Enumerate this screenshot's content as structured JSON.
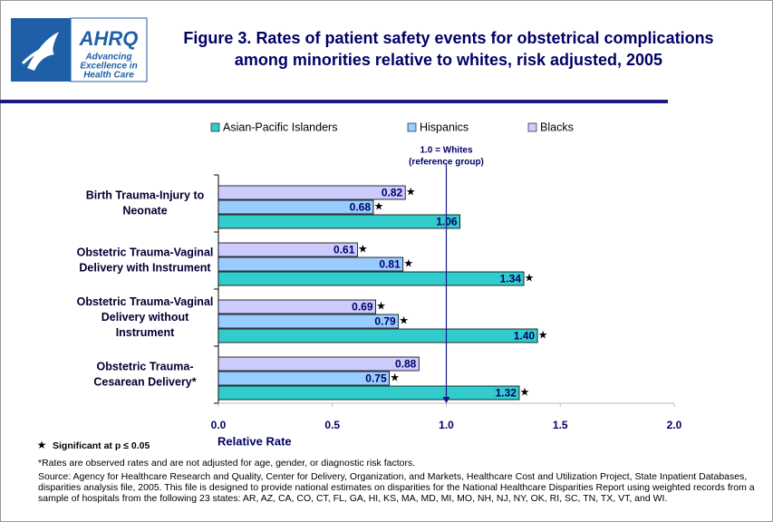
{
  "logo": {
    "acronym": "AHRQ",
    "tagline": [
      "Advancing",
      "Excellence in",
      "Health Care"
    ]
  },
  "chart_data": {
    "type": "hbar",
    "title": [
      "Figure 3. Rates of patient safety events for obstetrical complications",
      "among minorities relative to whites, risk adjusted, 2005"
    ],
    "categories": [
      [
        "Birth Trauma-Injury to",
        "Neonate"
      ],
      [
        "Obstetric Trauma-Vaginal",
        "Delivery with Instrument"
      ],
      [
        "Obstetric Trauma-Vaginal",
        "Delivery without",
        "Instrument"
      ],
      [
        "Obstetric Trauma-",
        "Cesarean Delivery*"
      ]
    ],
    "series": [
      {
        "name": "Asian-Pacific Islanders",
        "color": "#33cccc",
        "values": [
          1.06,
          1.34,
          1.4,
          1.32
        ],
        "value_labels": [
          "1.06",
          "1.34",
          "1.40",
          "1.32"
        ],
        "significant": [
          false,
          true,
          true,
          true
        ]
      },
      {
        "name": "Hispanics",
        "color": "#99ccff",
        "values": [
          0.68,
          0.81,
          0.79,
          0.75
        ],
        "value_labels": [
          "0.68",
          "0.81",
          "0.79",
          "0.75"
        ],
        "significant": [
          true,
          true,
          true,
          true
        ]
      },
      {
        "name": "Blacks",
        "color": "#ccccff",
        "values": [
          0.82,
          0.61,
          0.69,
          0.88
        ],
        "value_labels": [
          "0.82",
          "0.61",
          "0.69",
          "0.88"
        ],
        "significant": [
          true,
          true,
          true,
          false
        ]
      }
    ],
    "xlim": [
      0,
      2
    ],
    "xticks": [
      {
        "value": 0,
        "label": "0.0"
      },
      {
        "value": 0.5,
        "label": "0.5"
      },
      {
        "value": 1,
        "label": "1.0"
      },
      {
        "value": 1.5,
        "label": "1.5"
      },
      {
        "value": 2,
        "label": "2.0"
      }
    ],
    "xlabel": "Relative Rate",
    "reference_line": {
      "value": 1,
      "label": [
        "1.0 = Whites",
        "(reference group)"
      ]
    },
    "significance_marker": "★",
    "significance_note": "Significant at p ≤ 0.05",
    "footnote": "*Rates are observed rates and are not adjusted for age, gender, or diagnostic risk factors.",
    "source": "Source: Agency for Healthcare Research and Quality, Center for Delivery, Organization, and Markets, Healthcare Cost and Utilization Project, State Inpatient Databases, disparities analysis file, 2005. This file is designed to provide national estimates on disparities for the National Healthcare Disparities Report using weighted records from a sample of hospitals from the following 23 states: AR, AZ, CA, CO, CT, FL, GA, HI, KS, MA, MD, MI, MO, NH, NJ, NY, OK, RI, SC, TN, TX, VT, and WI."
  }
}
